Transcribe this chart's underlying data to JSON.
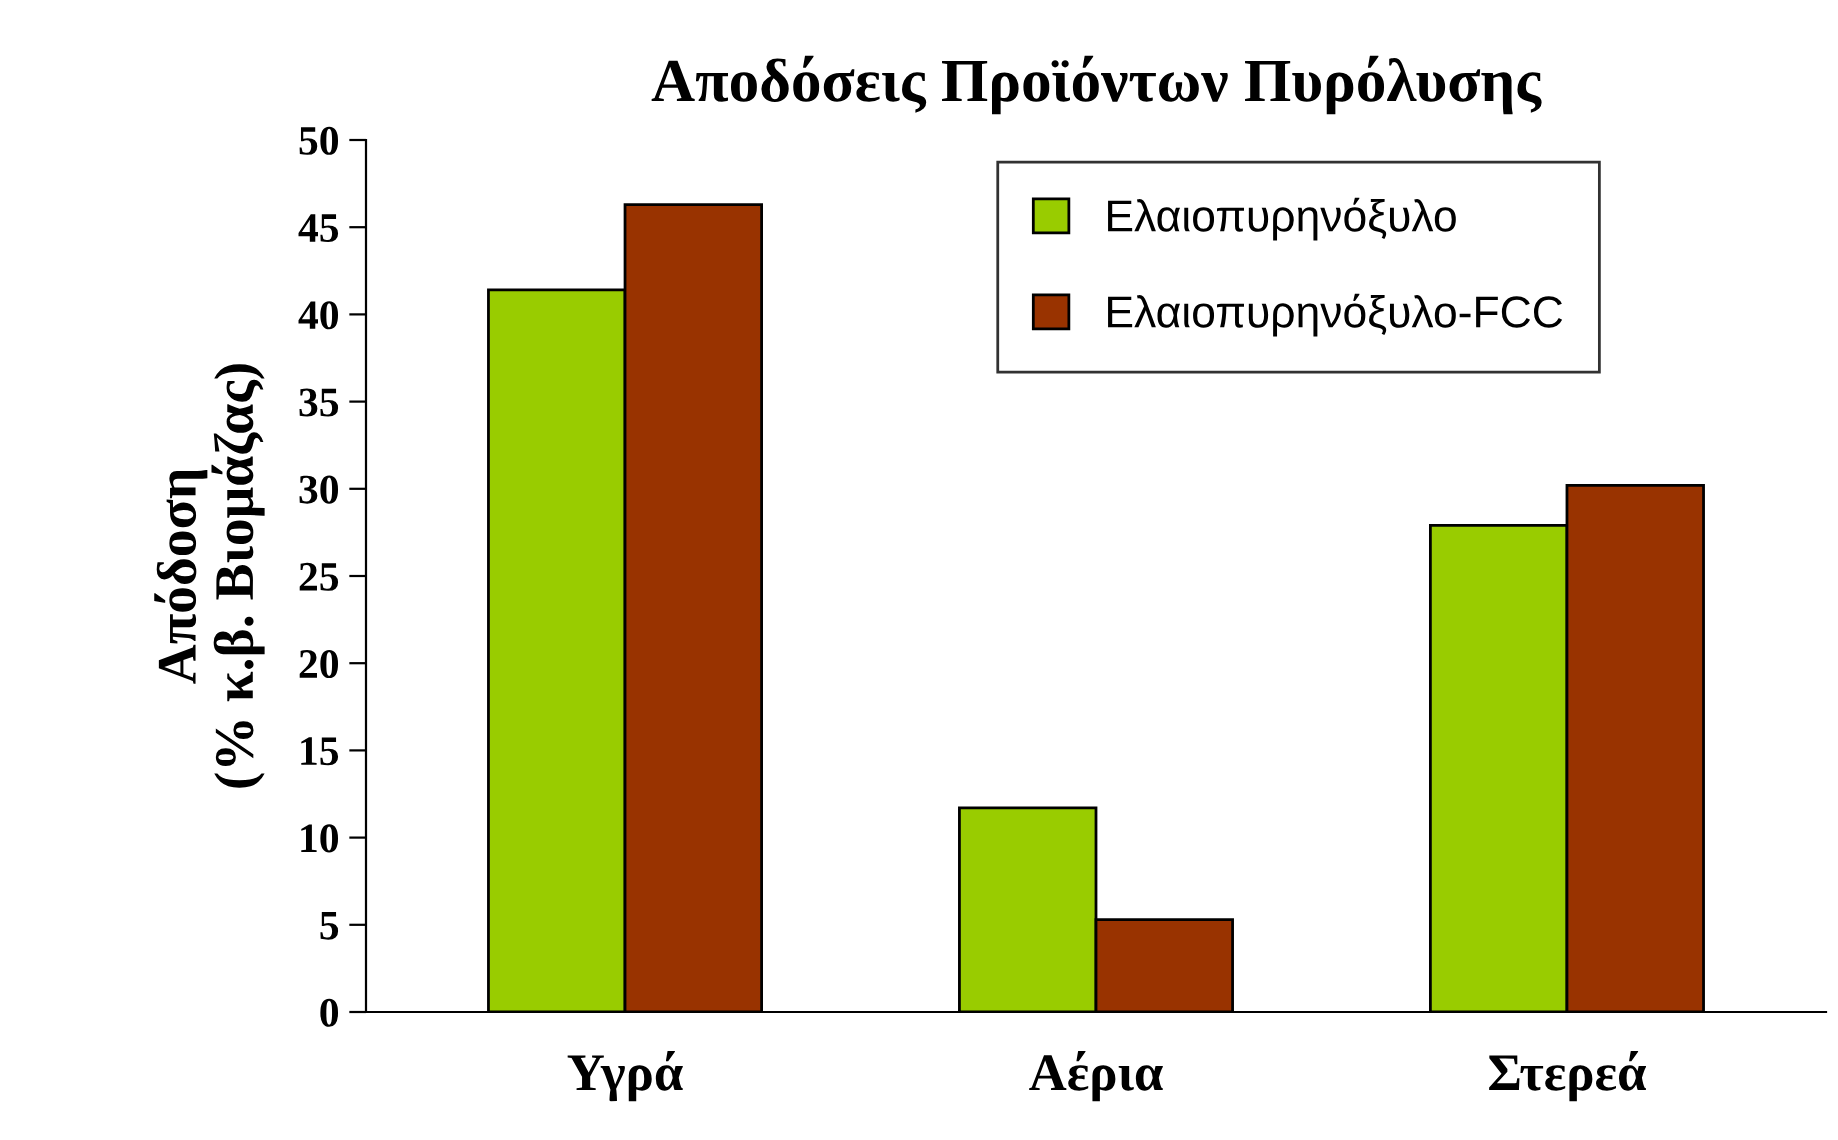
{
  "chart_data": {
    "type": "bar",
    "title": "Αποδόσεις Προϊόντων Πυρόλυσης",
    "ylabel": "Απόδοση\n(% κ.β. Βιομάζας)",
    "categories": [
      "Υγρά",
      "Αέρια",
      "Στερεά"
    ],
    "series": [
      {
        "name": "Ελαιοπυρηνόξυλο",
        "color": "#99cc00",
        "values": [
          41.4,
          11.7,
          27.9
        ]
      },
      {
        "name": "Ελαιοπυρηνόξυλο-FCC",
        "color": "#993300",
        "values": [
          46.3,
          5.3,
          30.2
        ]
      }
    ],
    "ylim": [
      0,
      50
    ],
    "yticks": [
      0,
      5,
      10,
      15,
      20,
      25,
      30,
      35,
      40,
      45,
      50
    ],
    "grid": false,
    "legend": "top right"
  }
}
